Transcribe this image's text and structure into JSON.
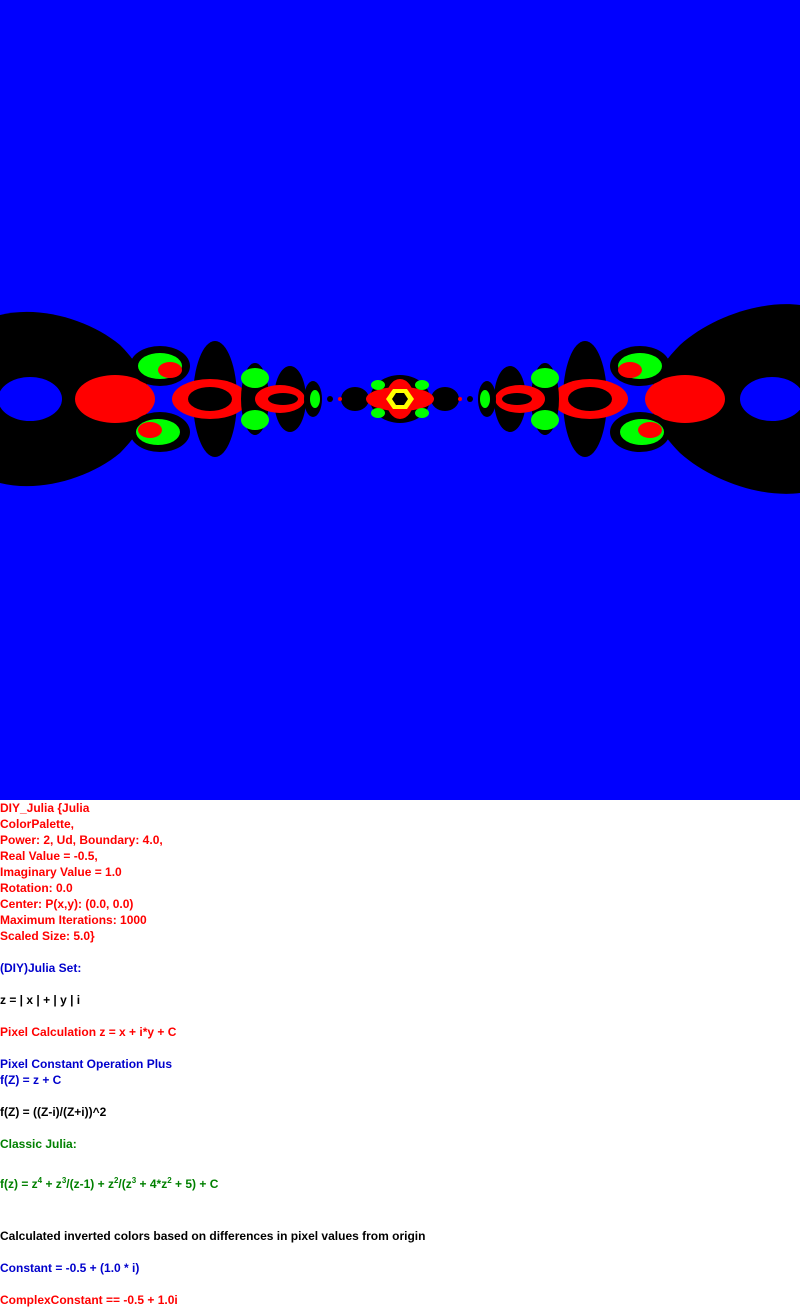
{
  "image": {
    "background": "#0000ff",
    "palette": [
      "#000000",
      "#ff0000",
      "#00ff00",
      "#ffff00",
      "#0000ff"
    ]
  },
  "caption": {
    "params": [
      "DIY_Julia {Julia",
      "ColorPalette,",
      "Power: 2, Ud, Boundary: 4.0,",
      "Real Value = -0.5,",
      "Imaginary Value = 1.0",
      "Rotation: 0.0",
      "Center: P(x,y): (0.0, 0.0)",
      "Maximum Iterations: 1000",
      "Scaled Size: 5.0}"
    ],
    "diy_heading": "(DIY)Julia Set:",
    "z_def": "z = | x | + | y | i",
    "pixel_calc": "Pixel Calculation z = x + i*y + C",
    "pixel_op": "Pixel Constant Operation Plus",
    "fz_plus": "f(Z) = z + C",
    "fz_ratio": "f(Z) = ((Z-i)/(Z+i))^2",
    "classic": "Classic Julia:",
    "formula": {
      "p1": "f(z) = z",
      "e1": "4",
      "p2": " + z",
      "e2": "3",
      "p3": "/(z-1) + z",
      "e3": "2",
      "p4": "/(z",
      "e4": "3",
      "p5": " + 4*z",
      "e5": "2",
      "p6": " + 5) + C"
    },
    "inverted": "Calculated inverted colors based on differences in pixel values from origin",
    "constant": "Constant = -0.5 + (1.0 * i)",
    "complex_constant": "ComplexConstant == -0.5 + 1.0i"
  },
  "colors": {
    "red": "#ff0000",
    "blue": "#0000cc",
    "black": "#000000",
    "green": "#008000"
  }
}
